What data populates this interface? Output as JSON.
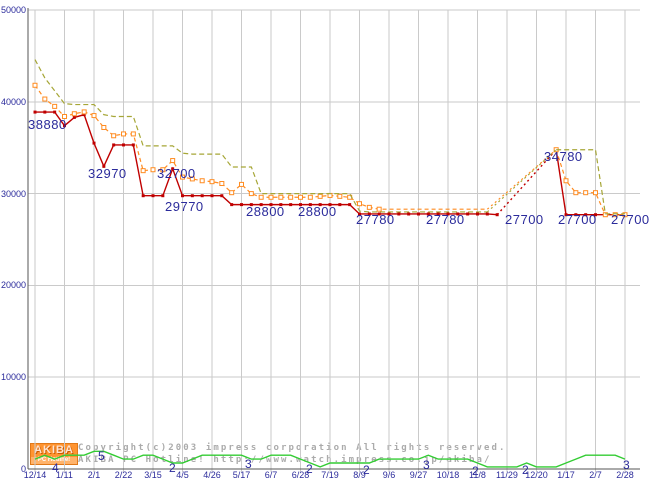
{
  "footer": {
    "line1": "Copyright(c)2003 impress corporation All rights reserved.",
    "line2": "AKIBA PC Hotline! http://www.watch.impress.co.jp/akiba/"
  },
  "logo": {
    "title": "AKIBA",
    "subtitle": "PC Hotline!"
  },
  "colors": {
    "lowest_price_line": "#c00000",
    "average_price_line": "#ff8c22",
    "highest_price_line": "#a6a636",
    "shop_count_line": "#33cc33",
    "annotation_text": "#2b2b9b",
    "gridline": "#cacaca",
    "axis": "#555555",
    "footer_text": "#ababab",
    "logo_orange": "#ff9430"
  },
  "chart_data": {
    "type": "line",
    "y_axis": {
      "range": [
        0,
        50000
      ],
      "tick_labels": [
        "50000",
        "40000",
        "30000",
        "20000",
        "10000",
        "0"
      ],
      "tick_values": [
        50000,
        40000,
        30000,
        20000,
        10000,
        0
      ],
      "gridline_values": [
        50000,
        40000,
        30000,
        20000,
        10000
      ]
    },
    "x_axis": {
      "tick_labels": [
        "12/14",
        "1/11",
        "2/1",
        "2/22",
        "3/15",
        "4/5",
        "4/26",
        "5/17",
        "6/7",
        "6/28",
        "7/19",
        "8/9",
        "9/6",
        "9/27",
        "10/18",
        "11/8",
        "11/29",
        "12/20",
        "1/17",
        "2/7",
        "2/28"
      ],
      "tick_week_indices": [
        0,
        3,
        6,
        9,
        12,
        15,
        18,
        21,
        24,
        27,
        30,
        33,
        36,
        39,
        42,
        45,
        48,
        51,
        54,
        57,
        60
      ],
      "weeks_total": 61
    },
    "series": [
      {
        "name": "lowest_price",
        "style": "solid",
        "marker": "filled-square",
        "values": [
          38880,
          38880,
          38880,
          37400,
          38300,
          38600,
          35500,
          32970,
          35300,
          35300,
          35300,
          29770,
          29770,
          29770,
          32700,
          29770,
          29770,
          29770,
          29770,
          29770,
          28800,
          28800,
          28800,
          28800,
          28800,
          28800,
          28800,
          28800,
          28800,
          28800,
          28800,
          28800,
          28800,
          27780,
          27780,
          27780,
          27780,
          27780,
          27780,
          27780,
          27780,
          27780,
          27780,
          27780,
          27780,
          27780,
          27780,
          27700,
          null,
          null,
          null,
          null,
          null,
          34780,
          27700,
          27700,
          27700,
          27700,
          27700,
          27700,
          27700
        ]
      },
      {
        "name": "average_price",
        "style": "dashed",
        "marker": "open-square",
        "marker_skip_range": [
          36,
          52
        ],
        "values": [
          41800,
          40300,
          39500,
          38400,
          38700,
          38900,
          38500,
          37200,
          36300,
          36500,
          36500,
          32500,
          32600,
          32600,
          33600,
          31800,
          31600,
          31400,
          31300,
          31100,
          30100,
          31000,
          30000,
          29600,
          29600,
          29600,
          29600,
          29600,
          29600,
          29700,
          29800,
          29700,
          29600,
          28900,
          28500,
          28300,
          28300,
          28300,
          28300,
          28300,
          28300,
          28300,
          28300,
          28300,
          28300,
          28300,
          28300,
          null,
          null,
          null,
          null,
          null,
          null,
          34780,
          31400,
          30100,
          30100,
          30100,
          27700,
          27700,
          27700
        ]
      },
      {
        "name": "highest_price",
        "style": "dashed",
        "marker": "none",
        "values": [
          44600,
          42600,
          41200,
          39800,
          39700,
          39700,
          39700,
          38600,
          38400,
          38400,
          38400,
          35200,
          35200,
          35200,
          35200,
          34400,
          34300,
          34300,
          34300,
          34300,
          32900,
          32900,
          32900,
          30000,
          30000,
          30000,
          30000,
          30000,
          30000,
          30000,
          30000,
          30000,
          30000,
          28100,
          28000,
          28000,
          28000,
          28000,
          28000,
          28000,
          28000,
          28000,
          28000,
          28000,
          28000,
          28000,
          28000,
          null,
          null,
          null,
          null,
          null,
          null,
          34780,
          34780,
          34780,
          34780,
          34780,
          27800,
          27800,
          27800
        ]
      },
      {
        "name": "shop_count",
        "style": "solid",
        "marker": "none",
        "axis": "count",
        "values": [
          3,
          4,
          3,
          4,
          4,
          4,
          5,
          5,
          4,
          3,
          3,
          4,
          4,
          3,
          2,
          2,
          3,
          4,
          4,
          4,
          4,
          4,
          3,
          3,
          4,
          4,
          4,
          3,
          2,
          1,
          2,
          2,
          2,
          2,
          2,
          3,
          3,
          3,
          3,
          3,
          4,
          3,
          3,
          3,
          3,
          2,
          1,
          1,
          1,
          1,
          2,
          1,
          1,
          1,
          2,
          3,
          4,
          4,
          4,
          4,
          3
        ]
      }
    ],
    "price_labels": [
      {
        "text": "38880",
        "x": 28,
        "y": 117
      },
      {
        "text": "32970",
        "x": 88,
        "y": 166
      },
      {
        "text": "32700",
        "x": 157,
        "y": 166
      },
      {
        "text": "29770",
        "x": 165,
        "y": 199
      },
      {
        "text": "28800",
        "x": 246,
        "y": 204
      },
      {
        "text": "28800",
        "x": 298,
        "y": 204
      },
      {
        "text": "27780",
        "x": 356,
        "y": 212
      },
      {
        "text": "27780",
        "x": 426,
        "y": 212
      },
      {
        "text": "27700",
        "x": 505,
        "y": 212
      },
      {
        "text": "34780",
        "x": 544,
        "y": 149
      },
      {
        "text": "27700",
        "x": 558,
        "y": 212
      },
      {
        "text": "27700",
        "x": 611,
        "y": 212
      }
    ],
    "count_labels": [
      {
        "text": "4",
        "x": 52,
        "y": 461
      },
      {
        "text": "5",
        "x": 98,
        "y": 449
      },
      {
        "text": "2",
        "x": 169,
        "y": 461
      },
      {
        "text": "3",
        "x": 245,
        "y": 457
      },
      {
        "text": "2",
        "x": 306,
        "y": 462
      },
      {
        "text": "2",
        "x": 363,
        "y": 463
      },
      {
        "text": "3",
        "x": 423,
        "y": 458
      },
      {
        "text": "2",
        "x": 472,
        "y": 464
      },
      {
        "text": "2",
        "x": 522,
        "y": 463
      },
      {
        "text": "3",
        "x": 623,
        "y": 458
      }
    ]
  }
}
